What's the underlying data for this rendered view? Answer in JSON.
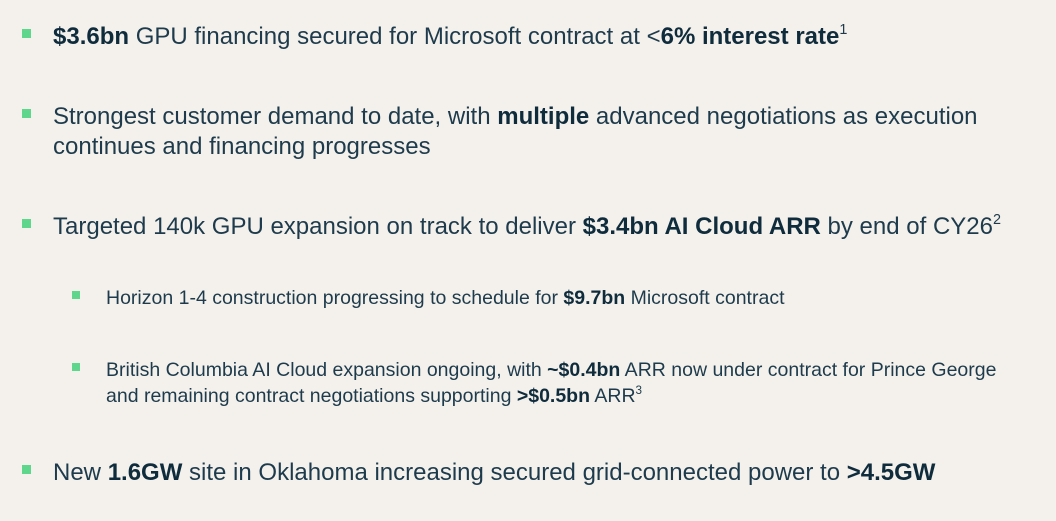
{
  "bullets": [
    {
      "level": 1,
      "parts": [
        {
          "text": "$3.6bn",
          "bold": true
        },
        {
          "text": " GPU financing secured for Microsoft contract at <"
        },
        {
          "text": "6% interest rate",
          "bold": true
        },
        {
          "text": "1",
          "sup": true
        }
      ]
    },
    {
      "level": 1,
      "parts": [
        {
          "text": "Strongest customer demand to date, with "
        },
        {
          "text": "multiple",
          "bold": true
        },
        {
          "text": " advanced negotiations as execution continues and financing progresses"
        }
      ]
    },
    {
      "level": 1,
      "parts": [
        {
          "text": "Targeted 140k GPU expansion on track to deliver "
        },
        {
          "text": "$3.4bn AI Cloud ARR",
          "bold": true
        },
        {
          "text": " by end of CY26"
        },
        {
          "text": "2",
          "sup": true
        }
      ]
    },
    {
      "level": 2,
      "parts": [
        {
          "text": "Horizon 1-4 construction progressing to schedule for "
        },
        {
          "text": "$9.7bn",
          "bold": true
        },
        {
          "text": " Microsoft contract"
        }
      ]
    },
    {
      "level": 2,
      "parts": [
        {
          "text": "British Columbia AI Cloud expansion ongoing, with "
        },
        {
          "text": "~$0.4bn",
          "bold": true
        },
        {
          "text": " ARR now under contract for Prince George and remaining contract negotiations supporting "
        },
        {
          "text": ">$0.5bn",
          "bold": true
        },
        {
          "text": " ARR"
        },
        {
          "text": "3",
          "sup": true
        }
      ]
    },
    {
      "level": 1,
      "parts": [
        {
          "text": "New "
        },
        {
          "text": "1.6GW",
          "bold": true
        },
        {
          "text": " site in Oklahoma increasing secured grid-connected power to "
        },
        {
          "text": ">4.5GW",
          "bold": true
        }
      ]
    }
  ]
}
